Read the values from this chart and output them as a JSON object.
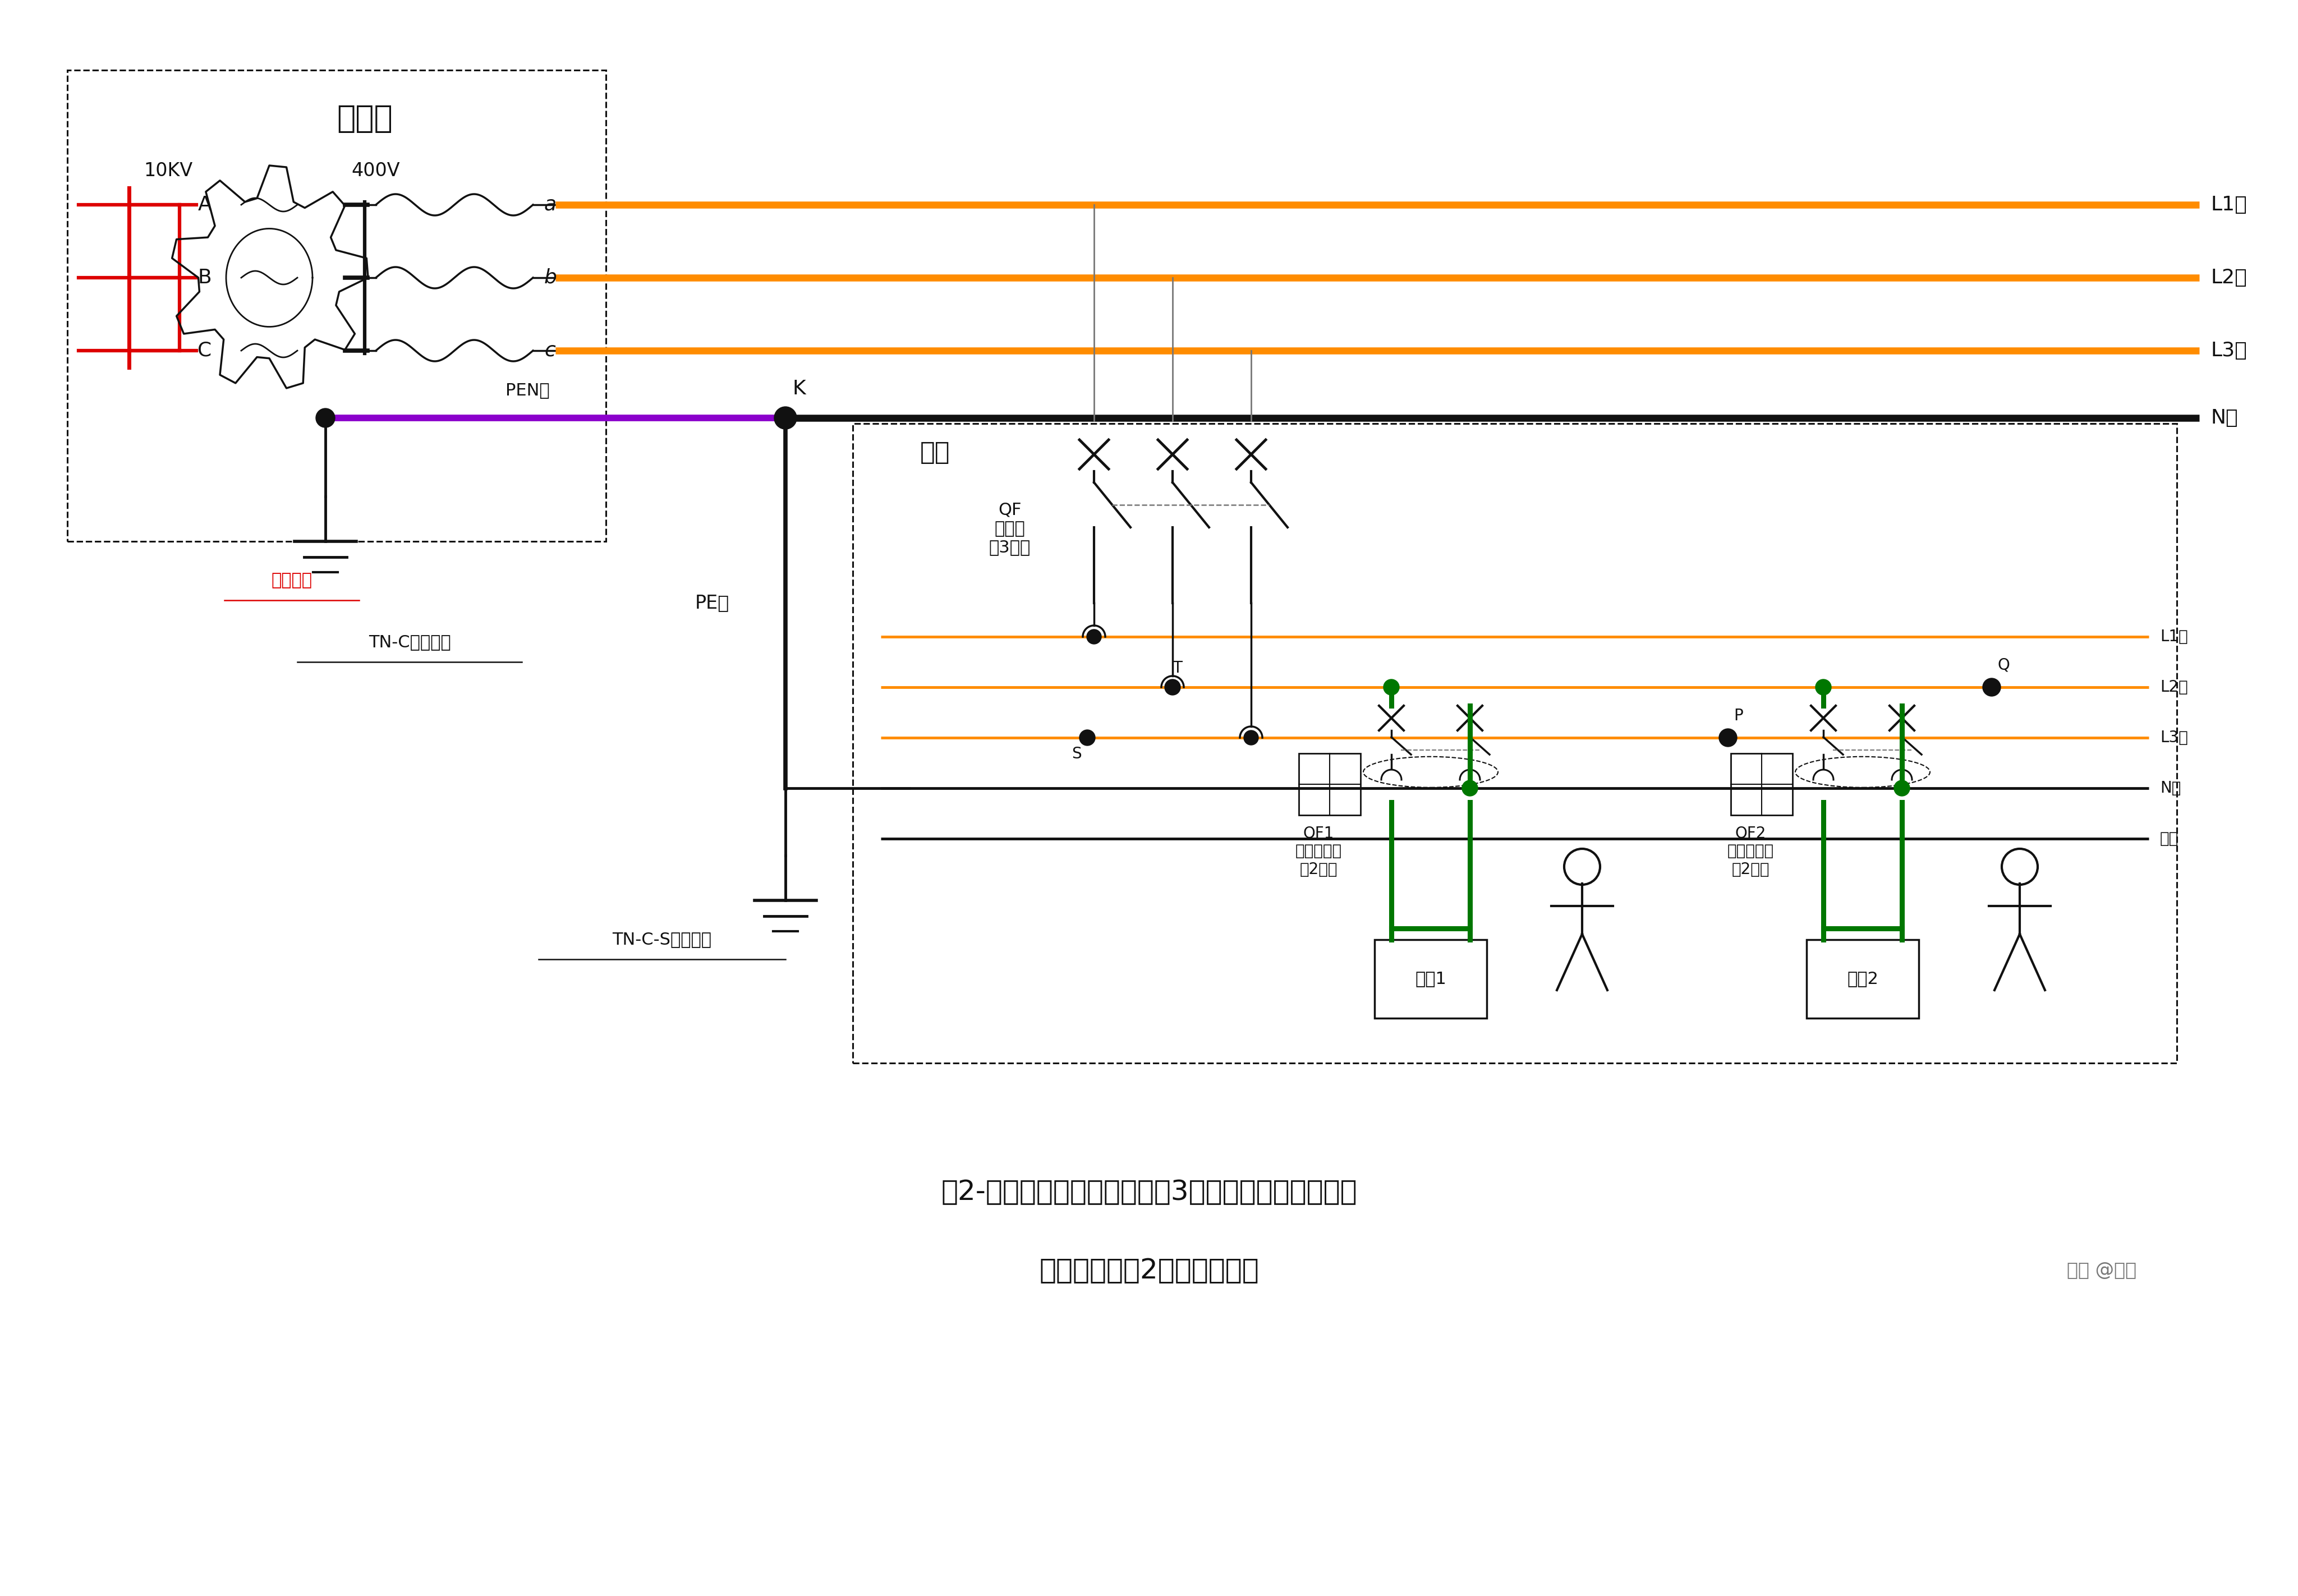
{
  "bg_color": "#ffffff",
  "orange": "#FF8C00",
  "black": "#111111",
  "purple": "#8B00CC",
  "green": "#007700",
  "red": "#DD0000",
  "gray": "#777777",
  "title_line1": "图2-建议方案：总断路器采用3极断路器（无漏保），",
  "title_line2": "单相支路增加2极漏保断路器",
  "watermark": "知乎 @老弟",
  "lbl_bds": "变电室",
  "lbl_10kv": "10KV",
  "lbl_400v": "400V",
  "lbl_a": "a",
  "lbl_b": "b",
  "lbl_c": "c",
  "lbl_PEN": "PEN线",
  "lbl_K": "K",
  "lbl_PE": "PE线",
  "lbl_tnc": "TN-C接地系统",
  "lbl_tncs": "TN-C-S接地系统",
  "lbl_xtjd": "系统接地",
  "lbl_L1": "L1线",
  "lbl_L2": "L2线",
  "lbl_L3": "L3线",
  "lbl_N": "N线",
  "lbl_L1i": "L1线",
  "lbl_L2i": "L2线",
  "lbl_L3i": "L3线",
  "lbl_Ni": "N线",
  "lbl_gnd": "地线",
  "lbl_QF": "QF\n断路器\n（3极）",
  "lbl_QF1": "QF1\n漏保断路器\n（2极）",
  "lbl_QF2": "QF2\n漏保断路器\n（2极）",
  "lbl_dev1": "设备1",
  "lbl_dev2": "设备2",
  "lbl_huni": "户内",
  "lbl_Q": "Q",
  "lbl_S": "S",
  "lbl_T": "T",
  "lbl_P": "P"
}
